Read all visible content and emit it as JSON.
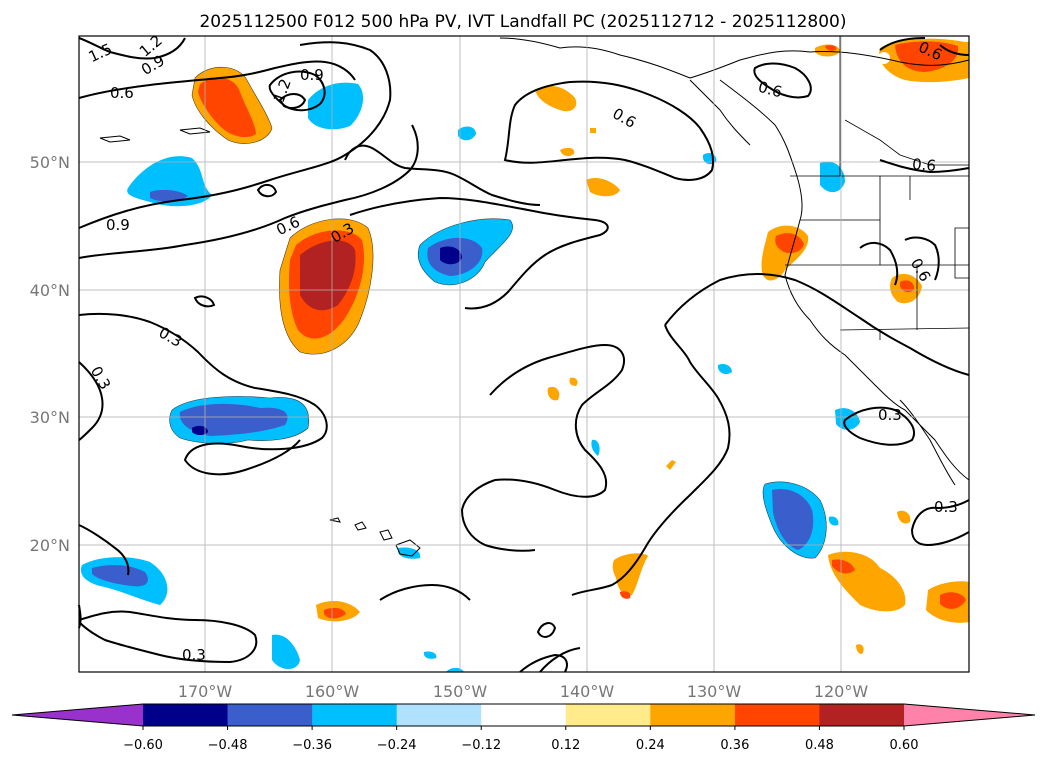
{
  "title": "2025112500 F012 500 hPa PV, IVT Landfall PC (2025112712 - 2025112800)",
  "lat_labels": [
    "50°N",
    "40°N",
    "30°N",
    "20°N"
  ],
  "lon_labels": [
    "170°W",
    "160°W",
    "150°W",
    "140°W",
    "130°W",
    "120°W"
  ],
  "colorbar": {
    "tick_labels": [
      "−0.60",
      "−0.48",
      "−0.36",
      "−0.24",
      "−0.12",
      "0.12",
      "0.24",
      "0.36",
      "0.48",
      "0.60"
    ],
    "colors": [
      "#9932cc",
      "#00008b",
      "#3a5fcd",
      "#00bfff",
      "#b0e2ff",
      "#ffffff",
      "#ffeb8a",
      "#ffa500",
      "#ff4500",
      "#b22222",
      "#ff82ab"
    ]
  },
  "contour_labels": [
    "1.5",
    "1.2",
    "0.9",
    "0.6",
    "0.9",
    "1.2",
    "0.6",
    "0.6",
    "0.6",
    "0.9",
    "0.6",
    "0.3",
    "0.3",
    "0.3",
    "0.6",
    "0.6",
    "0.3",
    "0.3",
    "0.3"
  ],
  "colors": {
    "lightblue": "#b0e2ff",
    "cyan": "#00bfff",
    "blue": "#3a5fcd",
    "navy": "#00008b",
    "yellow": "#ffeb8a",
    "orange": "#ffa500",
    "red": "#ff4500",
    "darkred": "#b22222"
  }
}
